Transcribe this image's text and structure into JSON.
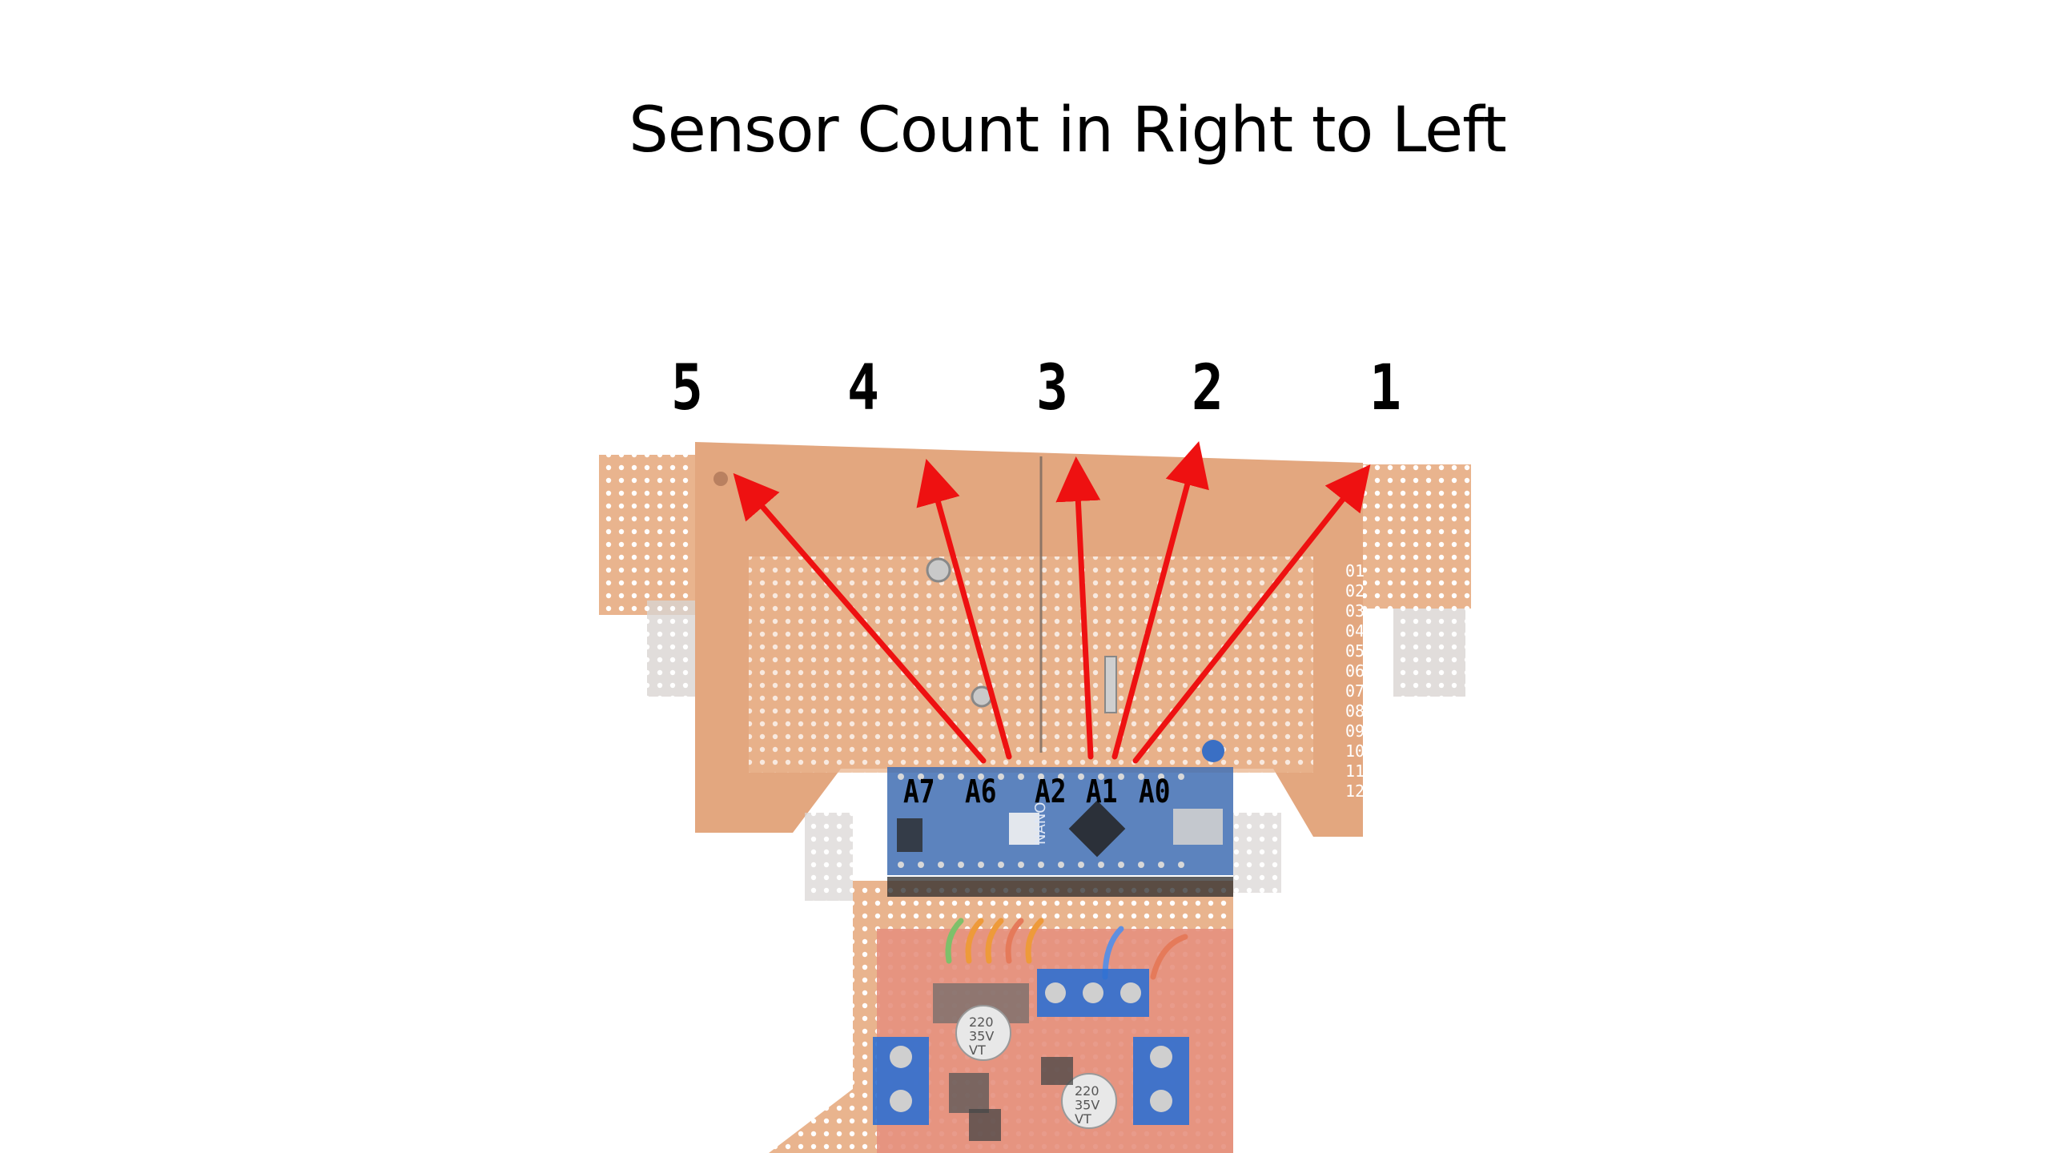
{
  "title": "Sensor Count in Right to Left",
  "sensor_numbers": [
    "5",
    "4",
    "3",
    "2",
    "1"
  ],
  "pin_labels": [
    "A7",
    "A6",
    "A2",
    "A1",
    "A0"
  ],
  "board_text": {
    "nano": "NANO",
    "cap1": "220\n35V\nVT",
    "cap2": "220\n35V\nVT"
  },
  "colors": {
    "pcb": "#e9b48e",
    "pcb_dark": "#d89b70",
    "arduino": "#3f6db3",
    "arrow": "#ee1111",
    "terminal": "#2f6fd0"
  }
}
